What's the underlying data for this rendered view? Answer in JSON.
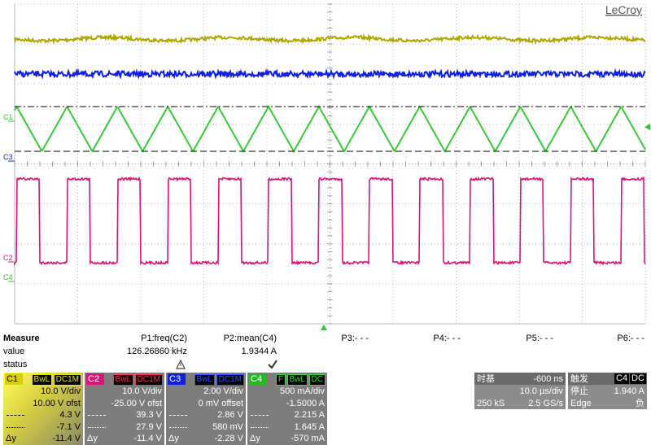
{
  "brand": "LeCroy",
  "trace_labels": [
    "C1",
    "C3",
    "C2",
    "C4"
  ],
  "measure": {
    "title": "Measure",
    "row_labels": [
      "value",
      "status"
    ],
    "params": [
      {
        "name": "P1:freq(C2)",
        "value": "126.26860 kHz"
      },
      {
        "name": "P2:mean(C4)",
        "value": "1.9344 A"
      },
      {
        "name": "P3:- - -"
      },
      {
        "name": "P4:- - -"
      },
      {
        "name": "P5:- - -"
      },
      {
        "name": "P6:- - -"
      }
    ]
  },
  "channels": [
    {
      "name": "C1",
      "tags": [
        "BwL",
        "DC1M"
      ],
      "scale": "10.0 V/div",
      "offset": "10.00 V ofst",
      "cursor1": "4.3 V",
      "cursor2": "-7.1 V",
      "delta_label": "Δy",
      "delta": "-11.4 V"
    },
    {
      "name": "C2",
      "tags": [
        "BwL",
        "DC1M"
      ],
      "scale": "10.0 V/div",
      "offset": "-25.00 V ofst",
      "cursor1": "39.3 V",
      "cursor2": "27.9 V",
      "delta_label": "Δy",
      "delta": "-11.4 V"
    },
    {
      "name": "C3",
      "tags": [
        "BwL",
        "DC1M"
      ],
      "scale": "2.00 V/div",
      "offset": "0 mV offset",
      "cursor1": "2.86 V",
      "cursor2": "580 mV",
      "delta_label": "Δy",
      "delta": "-2.28 V"
    },
    {
      "name": "C4",
      "tags": [
        "F",
        "BwL",
        "DC"
      ],
      "scale": "500 mA/div",
      "offset": "-1.5000 A",
      "cursor1": "2.215 A",
      "cursor2": "1.645 A",
      "delta_label": "Δy",
      "delta": "-570 mA"
    }
  ],
  "timebase": {
    "label": "时基",
    "delay": "-600 ns",
    "scale": "10.0 µs/div",
    "samples": "250 kS",
    "rate": "2.5 GS/s"
  },
  "trigger": {
    "label": "触发",
    "source": "C4",
    "coupling": "DC",
    "state": "停止",
    "level": "1.940 A",
    "type": "Edge",
    "slope": "负"
  }
}
